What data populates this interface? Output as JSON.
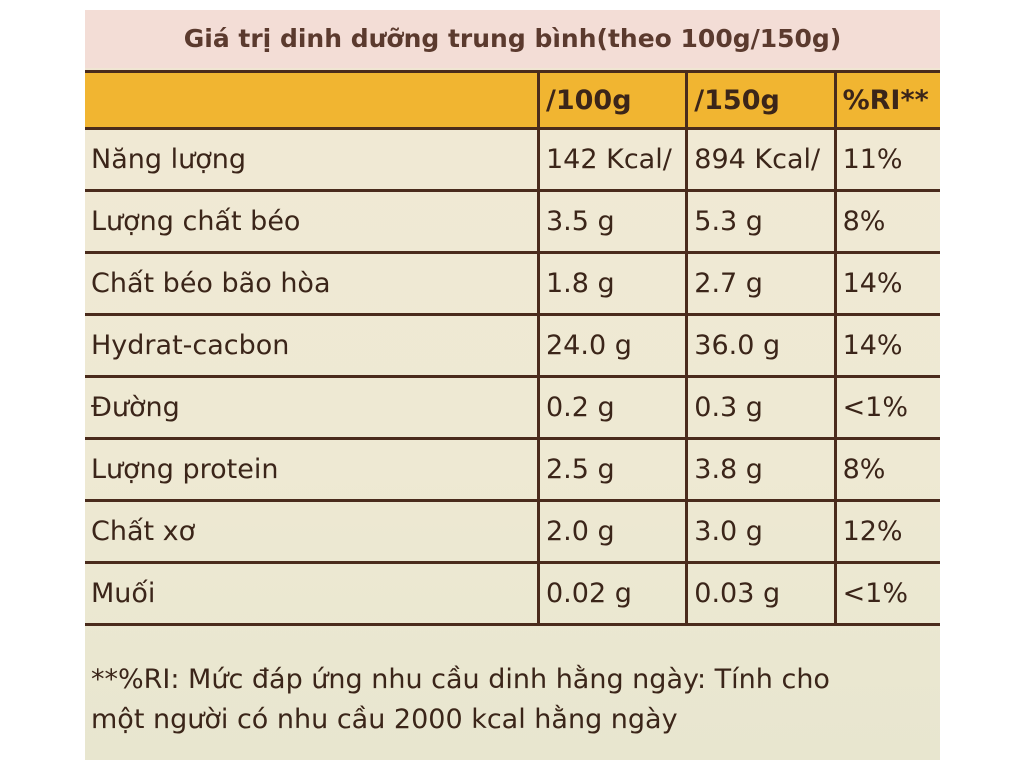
{
  "header": {
    "title": "Giá trị dinh dưỡng trung bình(theo 100g/150g)"
  },
  "table": {
    "columns": [
      "/100g",
      "/150g",
      "%RI**"
    ],
    "rows": [
      [
        "Năng lượng",
        "142 Kcal/",
        "894 Kcal/",
        "11%"
      ],
      [
        "Lượng chất béo",
        "3.5 g",
        "5.3 g",
        "8%"
      ],
      [
        "Chất béo bão hòa",
        "1.8 g",
        "2.7 g",
        "14%"
      ],
      [
        "Hydrat-cacbon",
        "24.0 g",
        "36.0 g",
        "14%"
      ],
      [
        "Đường",
        "0.2 g",
        "0.3 g",
        "<1%"
      ],
      [
        "Lượng protein",
        "2.5 g",
        "3.8 g",
        "8%"
      ],
      [
        "Chất xơ",
        "2.0 g",
        "3.0 g",
        "12%"
      ],
      [
        "Muối",
        "0.02 g",
        "0.03 g",
        "<1%"
      ]
    ]
  },
  "footnote": {
    "lines": [
      "**%RI: Mức đáp ứng nhu cầu dinh hằng ngày: Tính cho",
      "một người có nhu cầu 2000 kcal hằng ngày"
    ]
  }
}
